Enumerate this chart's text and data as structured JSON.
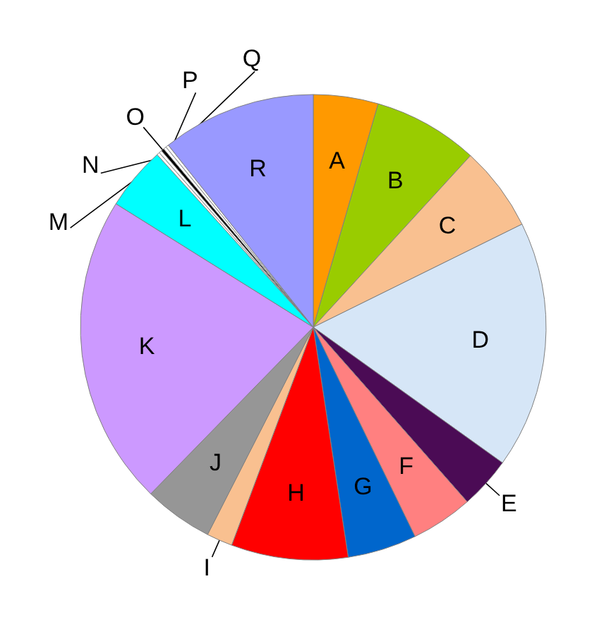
{
  "chart_data": {
    "type": "pie",
    "categories": [
      "A",
      "B",
      "C",
      "D",
      "E",
      "F",
      "G",
      "H",
      "I",
      "J",
      "K",
      "L",
      "M",
      "N",
      "O",
      "P",
      "Q",
      "R"
    ],
    "values": [
      4.5,
      7.3,
      5.9,
      17.2,
      3.6,
      4.3,
      4.8,
      8.1,
      1.8,
      4.8,
      21.6,
      4.4,
      0.2,
      0.2,
      0.2,
      0.2,
      0.2,
      10.7
    ],
    "colors": [
      "#ff9900",
      "#99cc00",
      "#f9c090",
      "#d6e6f7",
      "#4b0b55",
      "#ff8080",
      "#0066cc",
      "#ff0000",
      "#f9c090",
      "#969696",
      "#cc99ff",
      "#00ffff",
      "#ffffff",
      "#ffffff",
      "#000000",
      "#ffffff",
      "#ffffff",
      "#9999ff"
    ]
  }
}
